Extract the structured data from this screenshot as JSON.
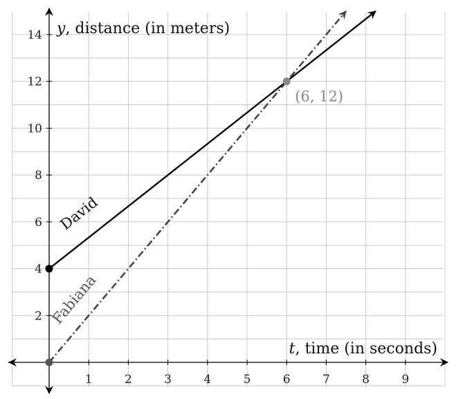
{
  "chart_data": {
    "type": "line",
    "xlabel": {
      "var": "t",
      "rest": ", time (in seconds)"
    },
    "ylabel": {
      "var": "y",
      "rest": ", distance (in meters)"
    },
    "x_ticks": [
      1,
      2,
      3,
      4,
      5,
      6,
      7,
      8,
      9
    ],
    "y_ticks": [
      2,
      4,
      6,
      8,
      10,
      12,
      14
    ],
    "xlim": [
      -1,
      10
    ],
    "ylim": [
      -1,
      15
    ],
    "grid": true,
    "series": [
      {
        "name": "David",
        "style": "solid",
        "color": "#000000",
        "x": [
          0,
          8.25
        ],
        "y": [
          4,
          15
        ],
        "endpoint_marker": {
          "x": 0,
          "y": 4
        }
      },
      {
        "name": "Fabiana",
        "style": "dash-dot",
        "color": "#444444",
        "x": [
          0,
          7.5
        ],
        "y": [
          0,
          15
        ],
        "endpoint_marker": {
          "x": 0,
          "y": 0
        }
      }
    ],
    "annotations": [
      {
        "x": 6,
        "y": 12,
        "label": "(6, 12)",
        "color": "#888888"
      }
    ]
  }
}
